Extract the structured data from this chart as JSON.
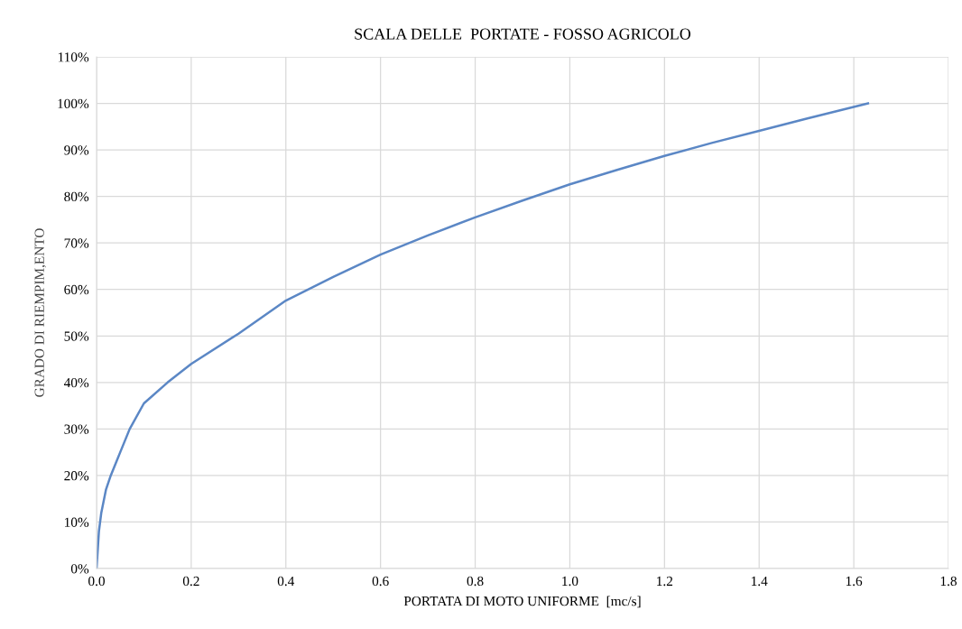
{
  "chart_data": {
    "type": "line",
    "title": "SCALA DELLE  PORTATE - FOSSO AGRICOLO",
    "xlabel": "PORTATA DI MOTO UNIFORME  [mc/s]",
    "ylabel": "GRADO DI RIEMPIM,ENTO",
    "series": [
      {
        "color": "#5b87c5",
        "x": [
          0,
          0.005,
          0.01,
          0.02,
          0.03,
          0.05,
          0.07,
          0.1,
          0.15,
          0.2,
          0.3,
          0.4,
          0.5,
          0.6,
          0.7,
          0.8,
          0.9,
          1.0,
          1.1,
          1.2,
          1.3,
          1.4,
          1.5,
          1.63
        ],
        "values": [
          0,
          8,
          12,
          17,
          20,
          25,
          30,
          35.5,
          40,
          44,
          50.5,
          57.6,
          62.7,
          67.5,
          71.6,
          75.5,
          79.1,
          82.6,
          85.7,
          88.7,
          91.5,
          94.1,
          96.7,
          100
        ]
      }
    ],
    "xlim": [
      0,
      1.8
    ],
    "xticks": [
      {
        "value": 0,
        "label": "0.0"
      },
      0.2,
      0.4,
      0.6,
      0.8,
      {
        "value": 1.0,
        "label": "1.0"
      },
      1.2,
      1.4,
      1.6,
      1.8
    ],
    "ylim": [
      0,
      110
    ],
    "yticks": [
      {
        "value": 0,
        "label": "0%"
      },
      {
        "value": 10,
        "label": "10%"
      },
      {
        "value": 20,
        "label": "20%"
      },
      {
        "value": 30,
        "label": "30%"
      },
      {
        "value": 40,
        "label": "40%"
      },
      {
        "value": 50,
        "label": "50%"
      },
      {
        "value": 60,
        "label": "60%"
      },
      {
        "value": 70,
        "label": "70%"
      },
      {
        "value": 80,
        "label": "80%"
      },
      {
        "value": 90,
        "label": "90%"
      },
      {
        "value": 100,
        "label": "100%"
      },
      {
        "value": 110,
        "label": "110%"
      }
    ],
    "grid": true,
    "legend": false,
    "marker": "none",
    "line_style": "solid"
  }
}
